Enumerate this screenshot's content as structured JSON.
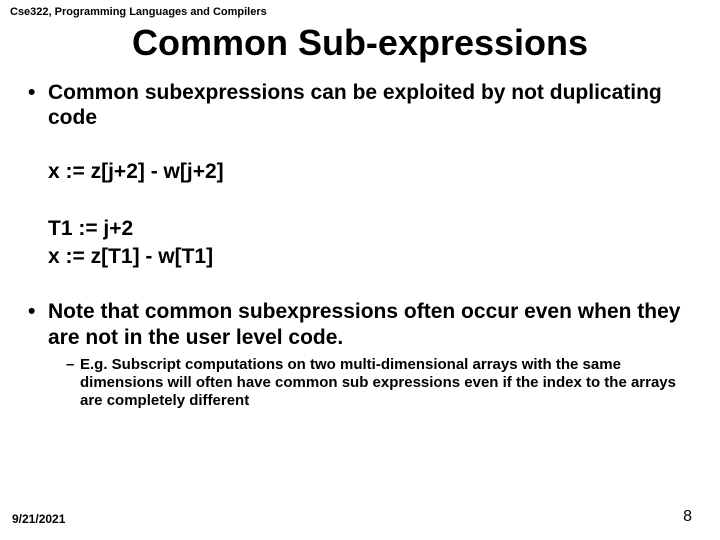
{
  "header": {
    "course": "Cse322, Programming Languages and Compilers"
  },
  "title": "Common Sub-expressions",
  "bullets": {
    "b1": "Common subexpressions can be exploited by not duplicating code",
    "code1": "x  :=  z[j+2] - w[j+2]",
    "code2a": "T1 := j+2",
    "code2b": "x := z[T1] - w[T1]",
    "b2": "Note that common subexpressions often occur even when they are not in the user level code.",
    "sub": "E.g.  Subscript computations on two multi-dimensional arrays with the same dimensions will often have common sub expressions even if the index to the arrays are completely different"
  },
  "footer": {
    "date": "9/21/2021",
    "page": "8"
  }
}
